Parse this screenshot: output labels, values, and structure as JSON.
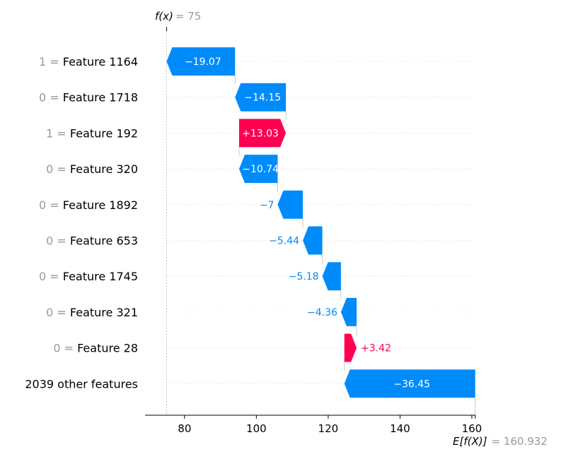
{
  "chart_data": {
    "type": "waterfall",
    "fx_symbol": "f(x)",
    "fx_value": "= 75",
    "base_symbol": "E[f(X)]",
    "base_value": "= 160.932",
    "fx": 75,
    "base": 160.932,
    "xlim": [
      69,
      161
    ],
    "xticks": [
      80,
      100,
      120,
      140,
      160
    ],
    "colors": {
      "positive": "#ff0051",
      "negative": "#008bfb",
      "muted": "#999999",
      "text": "#000000"
    },
    "rows": [
      {
        "value_label": "1",
        "feature": "Feature 1164",
        "contribution": -19.07,
        "label": "−19.07"
      },
      {
        "value_label": "0",
        "feature": "Feature 1718",
        "contribution": -14.15,
        "label": "−14.15"
      },
      {
        "value_label": "1",
        "feature": "Feature 192",
        "contribution": 13.03,
        "label": "+13.03"
      },
      {
        "value_label": "0",
        "feature": "Feature 320",
        "contribution": -10.74,
        "label": "−10.74"
      },
      {
        "value_label": "0",
        "feature": "Feature 1892",
        "contribution": -7,
        "label": "−7"
      },
      {
        "value_label": "0",
        "feature": "Feature 653",
        "contribution": -5.44,
        "label": "−5.44"
      },
      {
        "value_label": "0",
        "feature": "Feature 1745",
        "contribution": -5.18,
        "label": "−5.18"
      },
      {
        "value_label": "0",
        "feature": "Feature 321",
        "contribution": -4.36,
        "label": "−4.36"
      },
      {
        "value_label": "0",
        "feature": "Feature 28",
        "contribution": 3.42,
        "label": "+3.42"
      },
      {
        "value_label": "",
        "feature": "2039 other features",
        "contribution": -36.45,
        "label": "−36.45"
      }
    ]
  }
}
